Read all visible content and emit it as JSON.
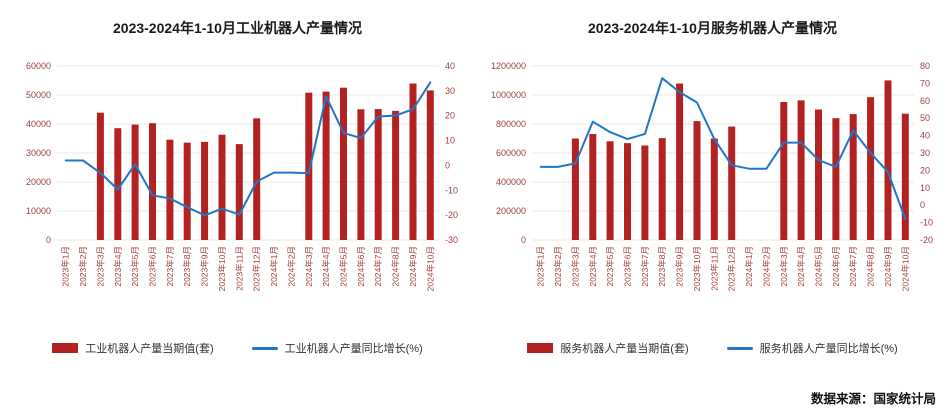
{
  "source": "数据来源：国家统计局",
  "colors": {
    "bar": "#b22222",
    "line": "#2176c7",
    "tick_label": "#a04040",
    "grid": "#e9e9e9",
    "title": "#1a1a1a"
  },
  "chart_data": [
    {
      "type": "bar",
      "title": "2023-2024年1-10月工业机器人产量情况",
      "legend_position": "bottom",
      "grid": true,
      "categories": [
        "2023年1月",
        "2023年2月",
        "2023年3月",
        "2023年4月",
        "2023年5月",
        "2023年6月",
        "2023年7月",
        "2023年8月",
        "2023年9月",
        "2023年10月",
        "2023年11月",
        "2023年12月",
        "2024年1月",
        "2024年2月",
        "2024年3月",
        "2024年4月",
        "2024年5月",
        "2024年6月",
        "2024年7月",
        "2024年8月",
        "2024年9月",
        "2024年10月"
      ],
      "left_axis": {
        "min": 0,
        "max": 60000,
        "step": 10000
      },
      "right_axis": {
        "min": -30,
        "max": 40,
        "step": 10
      },
      "series": [
        {
          "name": "工业机器人产量当期值(套)",
          "type": "bar",
          "axis": "left",
          "values": [
            null,
            null,
            43883,
            38550,
            39780,
            40271,
            34591,
            33556,
            33832,
            36327,
            33082,
            41960,
            null,
            null,
            50810,
            51160,
            52530,
            45060,
            45130,
            44500,
            53955,
            51582
          ]
        },
        {
          "name": "工业机器人产量同比增长(%)",
          "type": "line",
          "axis": "right",
          "values": [
            2,
            2,
            -3,
            -9.7,
            0.5,
            -12,
            -13.3,
            -16.8,
            -20.1,
            -17.4,
            -19.8,
            -6.5,
            -2.9,
            -2.9,
            -3.1,
            27.8,
            13.1,
            11,
            19.7,
            20.1,
            22.6,
            33.4
          ]
        }
      ]
    },
    {
      "type": "bar",
      "title": "2023-2024年1-10月服务机器人产量情况",
      "legend_position": "bottom",
      "grid": true,
      "categories": [
        "2023年1月",
        "2023年2月",
        "2023年3月",
        "2023年4月",
        "2023年5月",
        "2023年6月",
        "2023年7月",
        "2023年8月",
        "2023年9月",
        "2023年10月",
        "2023年11月",
        "2023年12月",
        "2024年1月",
        "2024年2月",
        "2024年3月",
        "2024年4月",
        "2024年5月",
        "2024年6月",
        "2024年7月",
        "2024年8月",
        "2024年9月",
        "2024年10月"
      ],
      "left_axis": {
        "min": 0,
        "max": 1200000,
        "step": 200000
      },
      "right_axis": {
        "min": -20,
        "max": 80,
        "step": 10
      },
      "series": [
        {
          "name": "服务机器人产量当期值(套)",
          "type": "bar",
          "axis": "left",
          "values": [
            null,
            null,
            700100,
            731000,
            681000,
            668000,
            652000,
            703000,
            1079000,
            820000,
            700000,
            782000,
            null,
            null,
            952000,
            963000,
            900000,
            840000,
            868000,
            985000,
            1101000,
            871000
          ]
        },
        {
          "name": "服务机器人产量同比增长(%)",
          "type": "line",
          "axis": "right",
          "values": [
            22,
            22,
            24,
            48,
            42,
            38,
            41,
            73,
            65,
            59,
            38,
            23,
            21,
            21,
            36,
            36,
            26,
            22,
            43,
            30,
            19,
            -8
          ]
        }
      ]
    }
  ]
}
